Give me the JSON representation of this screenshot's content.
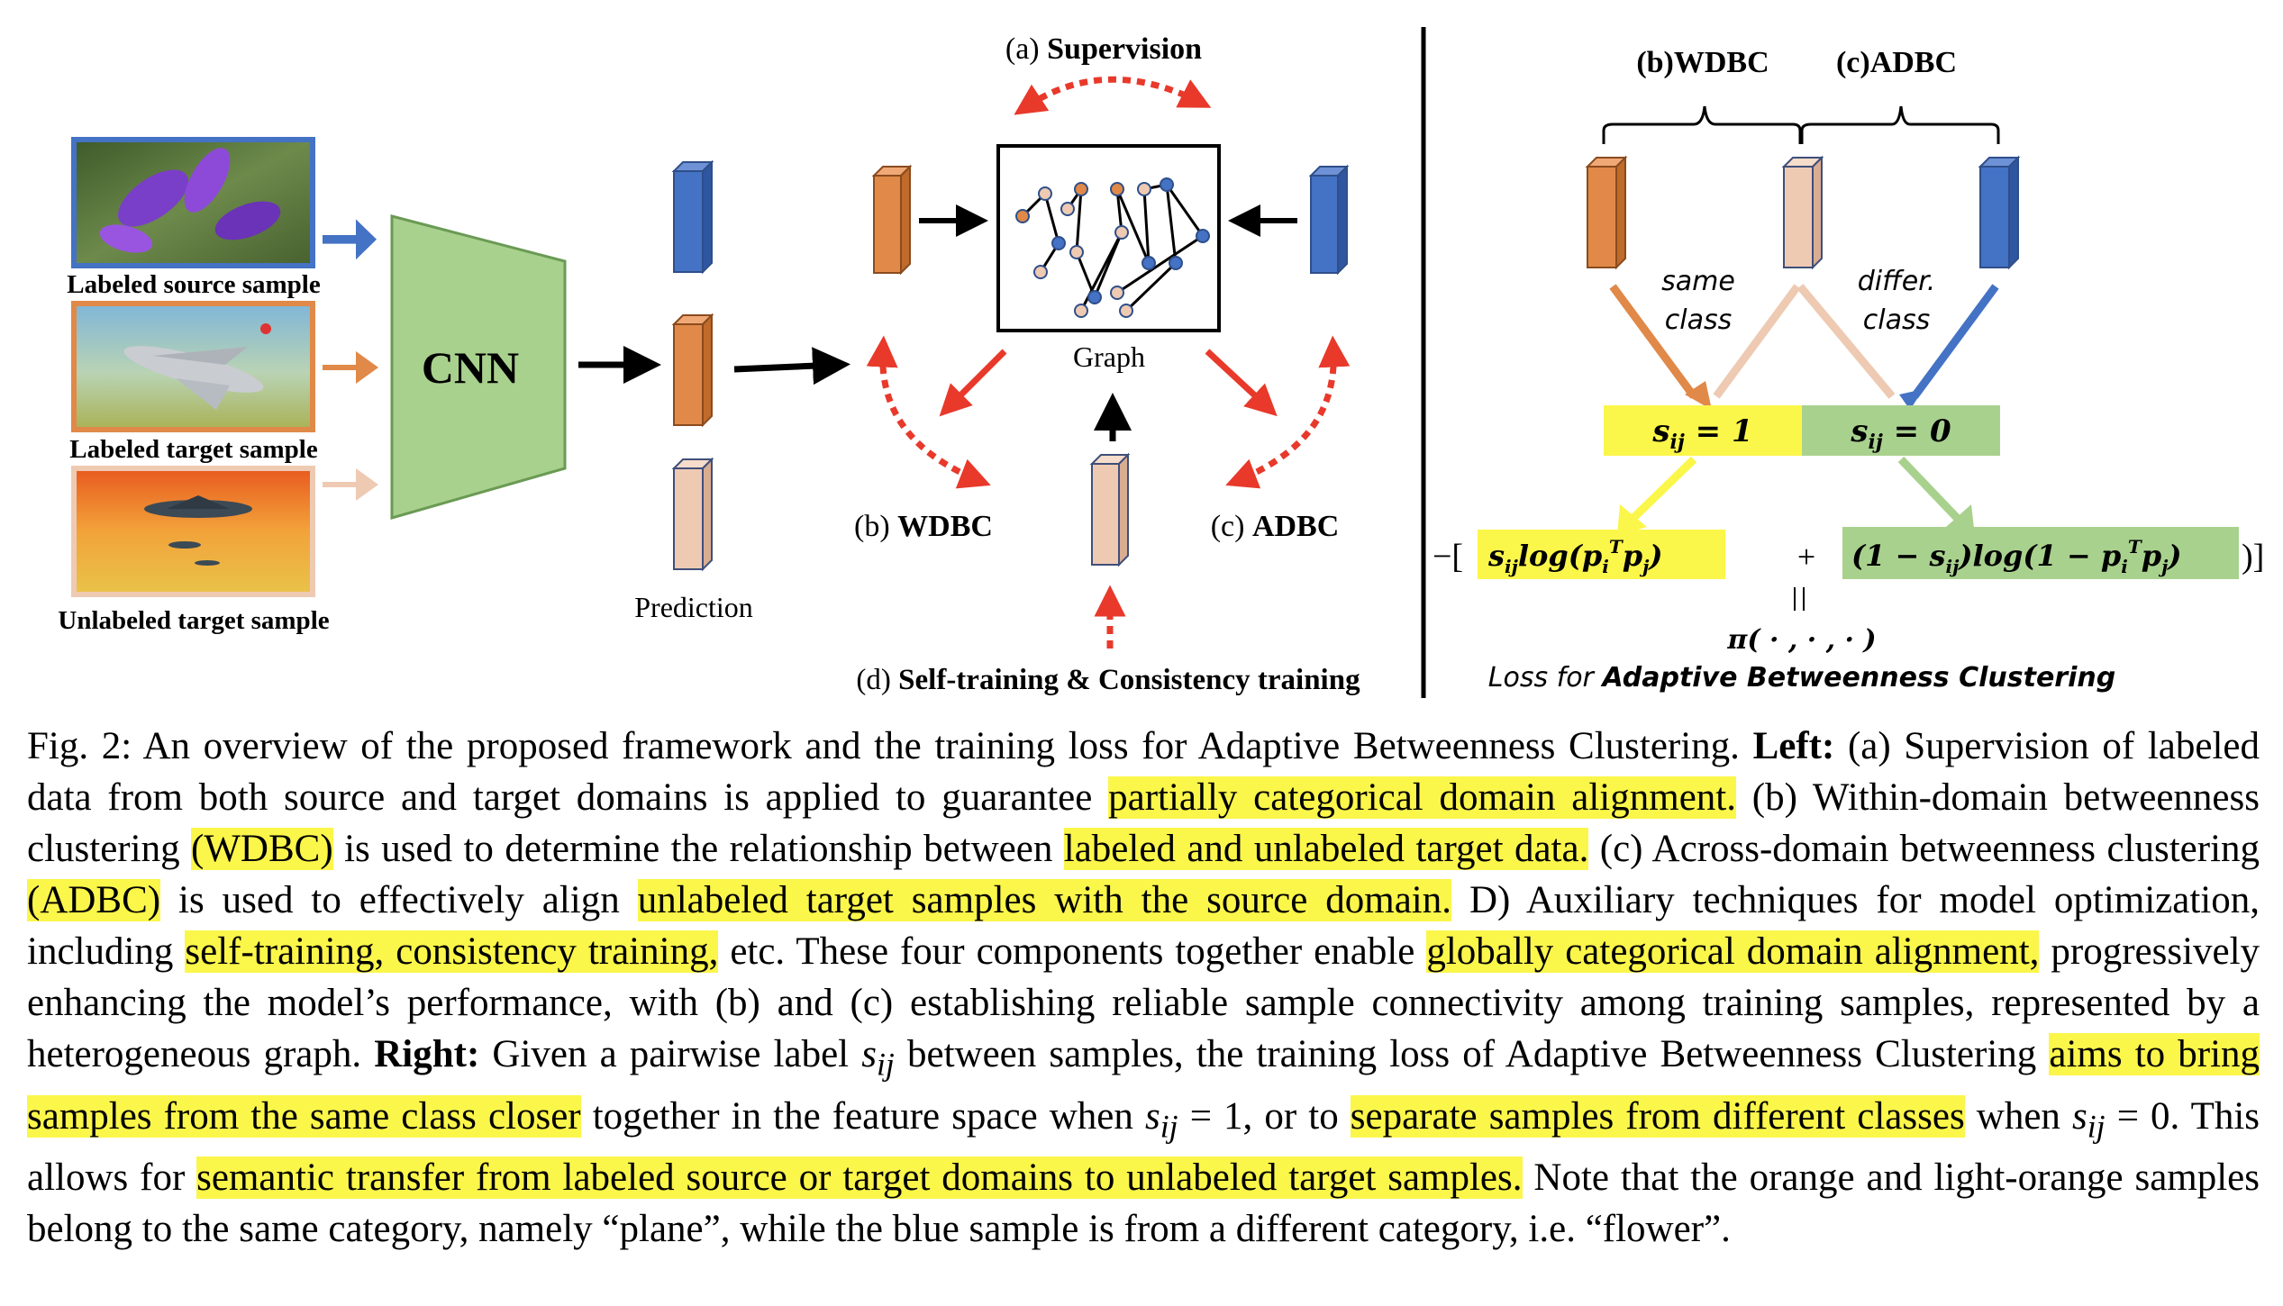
{
  "figure": {
    "left": {
      "samples": {
        "source": "Labeled source sample",
        "target": "Labeled target sample",
        "unlabeled": "Unlabeled target sample"
      },
      "cnn_label": "CNN",
      "prediction_label": "Prediction",
      "graph_label": "Graph",
      "supervision": {
        "prefix": "(a)",
        "name": "Supervision"
      },
      "wdbc": {
        "prefix": "(b)",
        "name": "WDBC"
      },
      "adbc": {
        "prefix": "(c)",
        "name": "ADBC"
      },
      "self_training": {
        "prefix": "(d)",
        "name": "Self-training & Consistency training"
      }
    },
    "right": {
      "header_wdbc": "(b)WDBC",
      "header_adbc": "(c)ADBC",
      "same_class_1": "same",
      "same_class_2": "class",
      "differ_class_1": "differ.",
      "differ_class_2": "class",
      "s1_label": "s_ij = 1",
      "s0_label": "s_ij = 0",
      "loss_open": "−[",
      "loss_close": ")]",
      "loss_plus": "+",
      "loss_pi": "π( · , · , · )",
      "loss_caption_prefix": "Loss for",
      "loss_caption_name": "Adaptive Betweenness Clustering"
    },
    "colors": {
      "orange": "#e08948",
      "light_orange": "#eecab3",
      "blue": "#4472c4",
      "cnn_green": "#a9d18e",
      "yellow_highlight": "#fbf64a",
      "green_box": "#a9d18e",
      "red_arrow": "#e8392b"
    }
  },
  "caption": {
    "s1": "Fig. 2: An overview of the proposed framework and the training loss for Adaptive Betweenness Clustering.",
    "s2": "Left:",
    "s3": "(a) Supervision of labeled data from both source and target domains is applied to guarantee",
    "h1": "partially categorical domain alignment.",
    "s4": "(b) Within-domain betweenness clustering",
    "h2": "(WDBC)",
    "s5": "is used to determine the relationship between",
    "h3": "labeled and unlabeled target data.",
    "s6": "(c) Across-domain betweenness clustering",
    "h4": "(ADBC)",
    "s7": "is used to effectively align",
    "h5": "unlabeled target samples with the source domain.",
    "s8": "D) Auxiliary techniques for model optimization, including",
    "h6": "self-training, consistency training,",
    "s9": "etc. These four components together enable",
    "h7": "globally categorical domain alignment,",
    "s10": "progressively enhancing the model’s performance, with (b) and (c) establishing reliable sample connectivity among training samples, represented by a heterogeneous graph.",
    "s11": "Right:",
    "s12": "Given a pairwise label",
    "m1": "s",
    "m1sub": "ij",
    "s13": "between samples, the training loss of Adaptive Betweenness Clustering",
    "h8": "aims to bring samples from the same class closer",
    "s14": "together in the feature space when",
    "m2": "s",
    "m2sub": "ij",
    "s15": "= 1, or to",
    "h9": "separate samples from different classes",
    "s16": "when",
    "m3": "s",
    "m3sub": "ij",
    "s17": "= 0. This allows for",
    "h10": "semantic transfer from labeled source or target domains to unlabeled target samples.",
    "s18": "Note that the orange and light-orange samples belong to the same category, namely “plane”, while the blue sample is from a different category, i.e. “flower”."
  }
}
